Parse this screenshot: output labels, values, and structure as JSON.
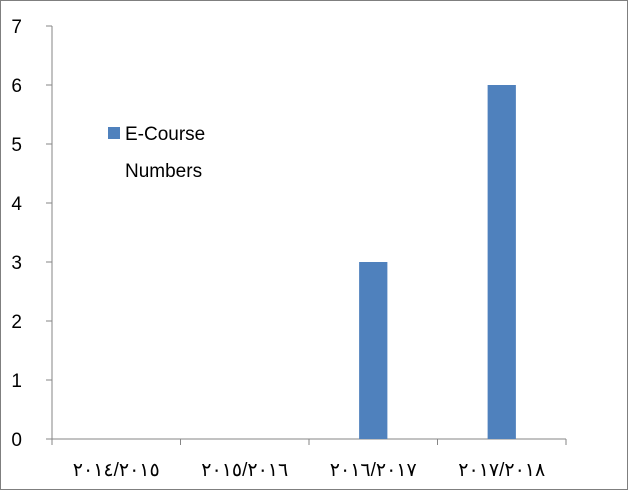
{
  "chart_data": {
    "type": "bar",
    "categories": [
      "٢٠١٤/٢٠١٥",
      "٢٠١٥/٢٠١٦",
      "٢٠١٦/٢٠١٧",
      "٢٠١٧/٢٠١٨"
    ],
    "series": [
      {
        "name": "E-Course Numbers",
        "values": [
          0,
          0,
          3,
          6
        ],
        "color": "#4f81bd"
      }
    ],
    "title": "",
    "xlabel": "",
    "ylabel": "",
    "ylim": [
      0,
      7
    ],
    "yticks": [
      "0",
      "1",
      "2",
      "3",
      "4",
      "5",
      "6",
      "7"
    ],
    "grid": false,
    "legend": {
      "position": "left",
      "lines": [
        "E-Course",
        "Numbers"
      ]
    }
  }
}
